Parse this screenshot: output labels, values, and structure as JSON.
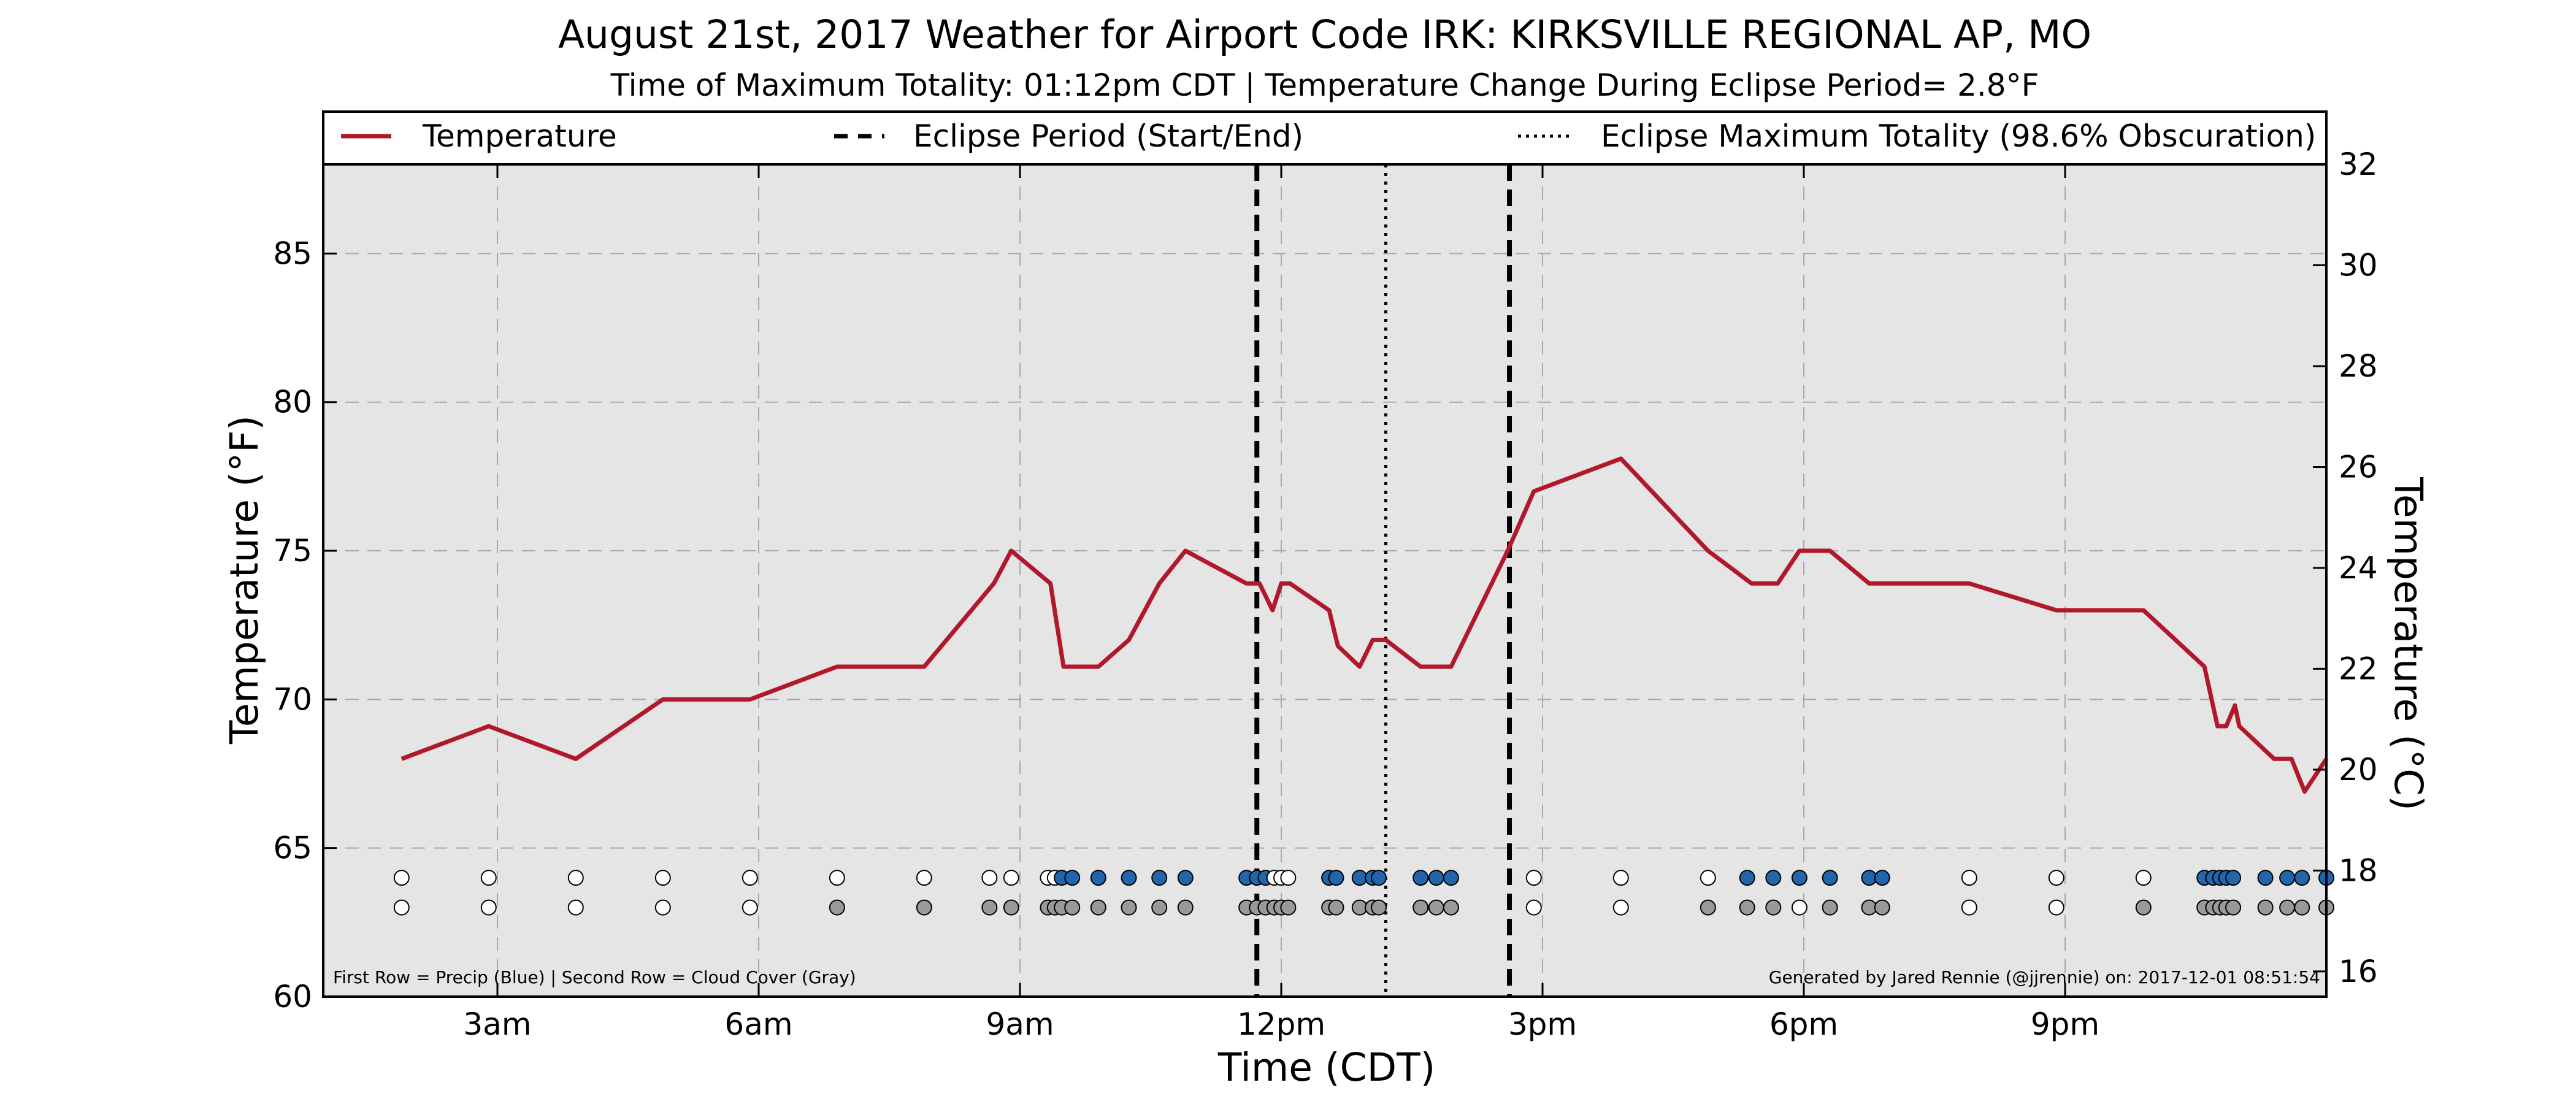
{
  "chart_data": {
    "type": "line",
    "title": "August 21st, 2017 Weather for Airport Code IRK: KIRKSVILLE REGIONAL AP, MO",
    "subtitle": "Time of Maximum Totality: 01:12pm CDT | Temperature Change During Eclipse Period= 2.8°F",
    "xlabel": "Time (CDT)",
    "ylabel_left": "Temperature (°F)",
    "ylabel_right": "Temperature (°C)",
    "xlim_hours": [
      1.0,
      24.0
    ],
    "ylim_left": [
      60,
      88
    ],
    "ylim_right": [
      15.5,
      32
    ],
    "x_ticks": [
      {
        "hour": 3,
        "label": "3am"
      },
      {
        "hour": 6,
        "label": "6am"
      },
      {
        "hour": 9,
        "label": "9am"
      },
      {
        "hour": 12,
        "label": "12pm"
      },
      {
        "hour": 15,
        "label": "3pm"
      },
      {
        "hour": 18,
        "label": "6pm"
      },
      {
        "hour": 21,
        "label": "9pm"
      }
    ],
    "y_ticks_left": [
      60,
      65,
      70,
      75,
      80,
      85
    ],
    "y_ticks_right": [
      16,
      18,
      20,
      22,
      24,
      26,
      28,
      30,
      32
    ],
    "grid": true,
    "legend": {
      "placement": "top",
      "entries": [
        {
          "label": "Temperature",
          "style": "solid",
          "color": "#b2182b"
        },
        {
          "label": "Eclipse Period (Start/End)",
          "style": "dashed",
          "color": "#000000"
        },
        {
          "label": "Eclipse Maximum Totality (98.6% Obscuration)",
          "style": "dotted",
          "color": "#000000"
        }
      ]
    },
    "series": [
      {
        "name": "Temperature",
        "color": "#b2182b",
        "points": [
          [
            1.9,
            68.0
          ],
          [
            2.9,
            69.1
          ],
          [
            3.9,
            68.0
          ],
          [
            4.9,
            70.0
          ],
          [
            5.9,
            70.0
          ],
          [
            6.9,
            71.1
          ],
          [
            7.9,
            71.1
          ],
          [
            8.7,
            73.9
          ],
          [
            8.9,
            75.0
          ],
          [
            9.35,
            73.9
          ],
          [
            9.5,
            71.1
          ],
          [
            9.9,
            71.1
          ],
          [
            10.25,
            72.0
          ],
          [
            10.6,
            73.9
          ],
          [
            10.9,
            75.0
          ],
          [
            11.6,
            73.9
          ],
          [
            11.75,
            73.9
          ],
          [
            11.9,
            73.0
          ],
          [
            12.0,
            73.9
          ],
          [
            12.1,
            73.9
          ],
          [
            12.55,
            73.0
          ],
          [
            12.65,
            71.8
          ],
          [
            12.9,
            71.1
          ],
          [
            13.05,
            72.0
          ],
          [
            13.2,
            72.0
          ],
          [
            13.6,
            71.1
          ],
          [
            13.95,
            71.1
          ],
          [
            14.6,
            75.0
          ],
          [
            14.9,
            77.0
          ],
          [
            15.9,
            78.1
          ],
          [
            16.9,
            75.0
          ],
          [
            17.4,
            73.9
          ],
          [
            17.7,
            73.9
          ],
          [
            17.95,
            75.0
          ],
          [
            18.3,
            75.0
          ],
          [
            18.75,
            73.9
          ],
          [
            19.9,
            73.9
          ],
          [
            20.9,
            73.0
          ],
          [
            21.9,
            73.0
          ],
          [
            22.6,
            71.1
          ],
          [
            22.75,
            69.1
          ],
          [
            22.85,
            69.1
          ],
          [
            22.95,
            69.8
          ],
          [
            23.0,
            69.1
          ],
          [
            23.4,
            68.0
          ],
          [
            23.6,
            68.0
          ],
          [
            23.75,
            66.9
          ],
          [
            24.0,
            68.0
          ]
        ]
      }
    ],
    "eclipse": {
      "start_hour": 11.72,
      "end_hour": 14.62,
      "max_totality_hour": 13.2,
      "max_totality_label": "01:12pm CDT",
      "obscuration": "98.6%"
    },
    "marker_rows": {
      "precip_y": 64,
      "cloud_y": 63,
      "observations": [
        {
          "hour": 1.9,
          "precip": false,
          "cloud": "clear"
        },
        {
          "hour": 2.9,
          "precip": false,
          "cloud": "clear"
        },
        {
          "hour": 3.9,
          "precip": false,
          "cloud": "clear"
        },
        {
          "hour": 4.9,
          "precip": false,
          "cloud": "clear"
        },
        {
          "hour": 5.9,
          "precip": false,
          "cloud": "clear"
        },
        {
          "hour": 6.9,
          "precip": false,
          "cloud": "cloudy"
        },
        {
          "hour": 7.9,
          "precip": false,
          "cloud": "cloudy"
        },
        {
          "hour": 8.65,
          "precip": false,
          "cloud": "cloudy"
        },
        {
          "hour": 8.9,
          "precip": false,
          "cloud": "cloudy"
        },
        {
          "hour": 9.32,
          "precip": false,
          "cloud": "cloudy"
        },
        {
          "hour": 9.4,
          "precip": false,
          "cloud": "cloudy"
        },
        {
          "hour": 9.48,
          "precip": true,
          "cloud": "cloudy"
        },
        {
          "hour": 9.6,
          "precip": true,
          "cloud": "cloudy"
        },
        {
          "hour": 9.9,
          "precip": true,
          "cloud": "cloudy"
        },
        {
          "hour": 10.25,
          "precip": true,
          "cloud": "cloudy"
        },
        {
          "hour": 10.6,
          "precip": true,
          "cloud": "cloudy"
        },
        {
          "hour": 10.9,
          "precip": true,
          "cloud": "cloudy"
        },
        {
          "hour": 11.6,
          "precip": true,
          "cloud": "cloudy"
        },
        {
          "hour": 11.72,
          "precip": true,
          "cloud": "cloudy"
        },
        {
          "hour": 11.82,
          "precip": true,
          "cloud": "cloudy"
        },
        {
          "hour": 11.92,
          "precip": false,
          "cloud": "cloudy"
        },
        {
          "hour": 12.0,
          "precip": false,
          "cloud": "cloudy"
        },
        {
          "hour": 12.08,
          "precip": false,
          "cloud": "cloudy"
        },
        {
          "hour": 12.55,
          "precip": true,
          "cloud": "cloudy"
        },
        {
          "hour": 12.63,
          "precip": true,
          "cloud": "cloudy"
        },
        {
          "hour": 12.9,
          "precip": true,
          "cloud": "cloudy"
        },
        {
          "hour": 13.05,
          "precip": true,
          "cloud": "cloudy"
        },
        {
          "hour": 13.12,
          "precip": true,
          "cloud": "cloudy"
        },
        {
          "hour": 13.6,
          "precip": true,
          "cloud": "cloudy"
        },
        {
          "hour": 13.78,
          "precip": true,
          "cloud": "cloudy"
        },
        {
          "hour": 13.95,
          "precip": true,
          "cloud": "cloudy"
        },
        {
          "hour": 14.9,
          "precip": false,
          "cloud": "clear"
        },
        {
          "hour": 15.9,
          "precip": false,
          "cloud": "clear"
        },
        {
          "hour": 16.9,
          "precip": false,
          "cloud": "cloudy"
        },
        {
          "hour": 17.35,
          "precip": true,
          "cloud": "cloudy"
        },
        {
          "hour": 17.65,
          "precip": true,
          "cloud": "cloudy"
        },
        {
          "hour": 17.95,
          "precip": true,
          "cloud": "clear"
        },
        {
          "hour": 18.3,
          "precip": true,
          "cloud": "cloudy"
        },
        {
          "hour": 18.75,
          "precip": true,
          "cloud": "cloudy"
        },
        {
          "hour": 18.9,
          "precip": true,
          "cloud": "cloudy"
        },
        {
          "hour": 19.9,
          "precip": false,
          "cloud": "clear"
        },
        {
          "hour": 20.9,
          "precip": false,
          "cloud": "clear"
        },
        {
          "hour": 21.9,
          "precip": false,
          "cloud": "cloudy"
        },
        {
          "hour": 22.6,
          "precip": true,
          "cloud": "cloudy"
        },
        {
          "hour": 22.7,
          "precip": true,
          "cloud": "cloudy"
        },
        {
          "hour": 22.78,
          "precip": true,
          "cloud": "cloudy"
        },
        {
          "hour": 22.85,
          "precip": true,
          "cloud": "cloudy"
        },
        {
          "hour": 22.93,
          "precip": true,
          "cloud": "cloudy"
        },
        {
          "hour": 23.3,
          "precip": true,
          "cloud": "cloudy"
        },
        {
          "hour": 23.55,
          "precip": true,
          "cloud": "cloudy"
        },
        {
          "hour": 23.72,
          "precip": true,
          "cloud": "cloudy"
        },
        {
          "hour": 24.0,
          "precip": true,
          "cloud": "cloudy"
        }
      ]
    },
    "footnote_left": "First Row = Precip (Blue) | Second Row = Cloud Cover (Gray)",
    "footnote_right": "Generated by Jared Rennie (@jjrennie) on: 2017-12-01 08:51:54",
    "colors": {
      "plot_background": "#e5e5e5",
      "temperature": "#b2182b",
      "precip_marker": "#2166ac",
      "cloud_marker": "#999999",
      "empty_marker": "#ffffff",
      "grid": "#a9a9a9"
    }
  }
}
